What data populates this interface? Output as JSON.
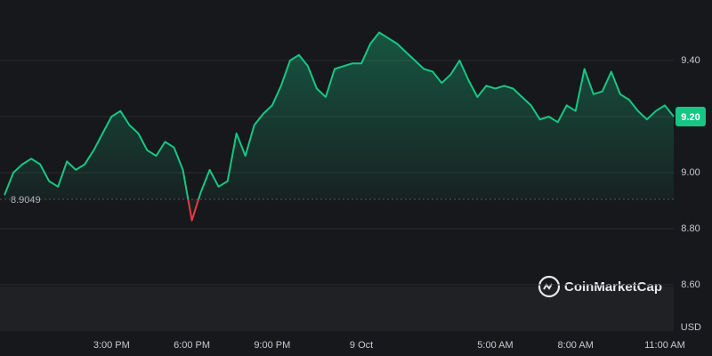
{
  "chart_data": {
    "type": "line",
    "categories": [
      null,
      null,
      null,
      null,
      null,
      null,
      null,
      null,
      null,
      null,
      null,
      null,
      "3:00 PM",
      null,
      null,
      null,
      null,
      null,
      null,
      null,
      null,
      "6:00 PM",
      null,
      null,
      null,
      null,
      null,
      null,
      null,
      null,
      "9:00 PM",
      null,
      null,
      null,
      null,
      null,
      null,
      null,
      null,
      null,
      "9 Oct",
      null,
      null,
      null,
      null,
      null,
      null,
      null,
      null,
      null,
      null,
      null,
      null,
      null,
      null,
      "5:00 AM",
      null,
      null,
      null,
      null,
      null,
      null,
      null,
      null,
      "8:00 AM",
      null,
      null,
      null,
      null,
      null,
      null,
      null,
      null,
      null,
      "11:00 AM",
      null
    ],
    "values": [
      8.92,
      9.0,
      9.03,
      9.05,
      9.03,
      8.97,
      8.95,
      9.04,
      9.01,
      9.03,
      9.08,
      9.14,
      9.2,
      9.22,
      9.17,
      9.14,
      9.08,
      9.06,
      9.11,
      9.09,
      9.01,
      8.83,
      8.93,
      9.01,
      8.95,
      8.97,
      9.14,
      9.06,
      9.17,
      9.21,
      9.24,
      9.31,
      9.4,
      9.42,
      9.38,
      9.3,
      9.27,
      9.37,
      9.38,
      9.39,
      9.39,
      9.46,
      9.5,
      9.48,
      9.46,
      9.43,
      9.4,
      9.37,
      9.36,
      9.32,
      9.35,
      9.4,
      9.33,
      9.27,
      9.31,
      9.3,
      9.31,
      9.3,
      9.27,
      9.24,
      9.19,
      9.2,
      9.18,
      9.24,
      9.22,
      9.37,
      9.28,
      9.29,
      9.36,
      9.28,
      9.26,
      9.22,
      9.19,
      9.22,
      9.24,
      9.2
    ],
    "color": "#16c784",
    "below_color": "#ea3943",
    "baseline": 8.9049,
    "ylim": [
      8.435,
      9.616
    ],
    "yticks": [
      {
        "value": 8.6,
        "label": "8.60"
      },
      {
        "value": 8.8,
        "label": "8.80"
      },
      {
        "value": 9.0,
        "label": "9.00"
      },
      {
        "value": 9.2,
        "label": "9.20"
      },
      {
        "value": 9.4,
        "label": "9.40"
      }
    ],
    "highlighted_ytick": 3,
    "currency": "USD",
    "watermark": "CoinMarketCap",
    "grid": true
  }
}
